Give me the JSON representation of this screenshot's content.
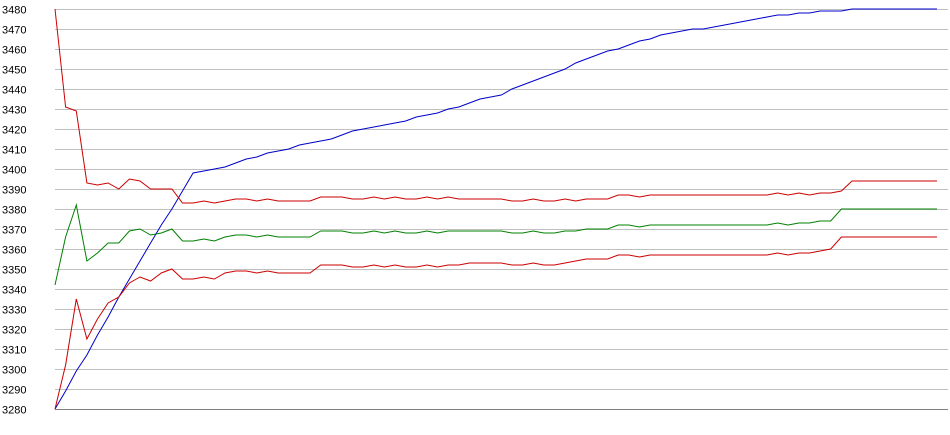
{
  "chart_data": {
    "type": "line",
    "title": "",
    "xlabel": "",
    "ylabel": "",
    "ylim": [
      3280,
      3480
    ],
    "yticks": [
      3280,
      3290,
      3300,
      3310,
      3320,
      3330,
      3340,
      3350,
      3360,
      3370,
      3380,
      3390,
      3400,
      3410,
      3420,
      3430,
      3440,
      3450,
      3460,
      3470,
      3480
    ],
    "grid": true,
    "legend": "none",
    "x_count": 84,
    "series": [
      {
        "color": "#0000cc",
        "values": [
          3280,
          3289,
          3299,
          3307,
          3317,
          3326,
          3336,
          3345,
          3354,
          3363,
          3372,
          3380,
          3389,
          3398,
          3399,
          3400,
          3401,
          3403,
          3405,
          3406,
          3408,
          3409,
          3410,
          3412,
          3413,
          3414,
          3415,
          3417,
          3419,
          3420,
          3421,
          3422,
          3423,
          3424,
          3426,
          3427,
          3428,
          3430,
          3431,
          3433,
          3435,
          3436,
          3437,
          3440,
          3442,
          3444,
          3446,
          3448,
          3450,
          3453,
          3455,
          3457,
          3459,
          3460,
          3462,
          3464,
          3465,
          3467,
          3468,
          3469,
          3470,
          3470,
          3471,
          3472,
          3473,
          3474,
          3475,
          3476,
          3477,
          3477,
          3478,
          3478,
          3479,
          3479,
          3479,
          3480,
          3480,
          3480,
          3480,
          3480,
          3480,
          3480,
          3480,
          3480
        ]
      },
      {
        "color": "#cc0000",
        "values": [
          3480,
          3431,
          3429,
          3393,
          3392,
          3393,
          3390,
          3395,
          3394,
          3390,
          3390,
          3390,
          3383,
          3383,
          3384,
          3383,
          3384,
          3385,
          3385,
          3384,
          3385,
          3384,
          3384,
          3384,
          3384,
          3386,
          3386,
          3386,
          3385,
          3385,
          3386,
          3385,
          3386,
          3385,
          3385,
          3386,
          3385,
          3386,
          3385,
          3385,
          3385,
          3385,
          3385,
          3384,
          3384,
          3385,
          3384,
          3384,
          3385,
          3384,
          3385,
          3385,
          3385,
          3387,
          3387,
          3386,
          3387,
          3387,
          3387,
          3387,
          3387,
          3387,
          3387,
          3387,
          3387,
          3387,
          3387,
          3387,
          3388,
          3387,
          3388,
          3387,
          3388,
          3388,
          3389,
          3394,
          3394,
          3394,
          3394,
          3394,
          3394,
          3394,
          3394,
          3394
        ]
      },
      {
        "color": "#008000",
        "values": [
          3342,
          3366,
          3382,
          3354,
          3358,
          3363,
          3363,
          3369,
          3370,
          3367,
          3368,
          3370,
          3364,
          3364,
          3365,
          3364,
          3366,
          3367,
          3367,
          3366,
          3367,
          3366,
          3366,
          3366,
          3366,
          3369,
          3369,
          3369,
          3368,
          3368,
          3369,
          3368,
          3369,
          3368,
          3368,
          3369,
          3368,
          3369,
          3369,
          3369,
          3369,
          3369,
          3369,
          3368,
          3368,
          3369,
          3368,
          3368,
          3369,
          3369,
          3370,
          3370,
          3370,
          3372,
          3372,
          3371,
          3372,
          3372,
          3372,
          3372,
          3372,
          3372,
          3372,
          3372,
          3372,
          3372,
          3372,
          3372,
          3373,
          3372,
          3373,
          3373,
          3374,
          3374,
          3380,
          3380,
          3380,
          3380,
          3380,
          3380,
          3380,
          3380,
          3380,
          3380
        ]
      },
      {
        "color": "#cc0000",
        "values": [
          3280,
          3302,
          3335,
          3315,
          3325,
          3333,
          3336,
          3343,
          3346,
          3344,
          3348,
          3350,
          3345,
          3345,
          3346,
          3345,
          3348,
          3349,
          3349,
          3348,
          3349,
          3348,
          3348,
          3348,
          3348,
          3352,
          3352,
          3352,
          3351,
          3351,
          3352,
          3351,
          3352,
          3351,
          3351,
          3352,
          3351,
          3352,
          3352,
          3353,
          3353,
          3353,
          3353,
          3352,
          3352,
          3353,
          3352,
          3352,
          3353,
          3354,
          3355,
          3355,
          3355,
          3357,
          3357,
          3356,
          3357,
          3357,
          3357,
          3357,
          3357,
          3357,
          3357,
          3357,
          3357,
          3357,
          3357,
          3357,
          3358,
          3357,
          3358,
          3358,
          3359,
          3360,
          3366,
          3366,
          3366,
          3366,
          3366,
          3366,
          3366,
          3366,
          3366,
          3366
        ]
      }
    ]
  }
}
